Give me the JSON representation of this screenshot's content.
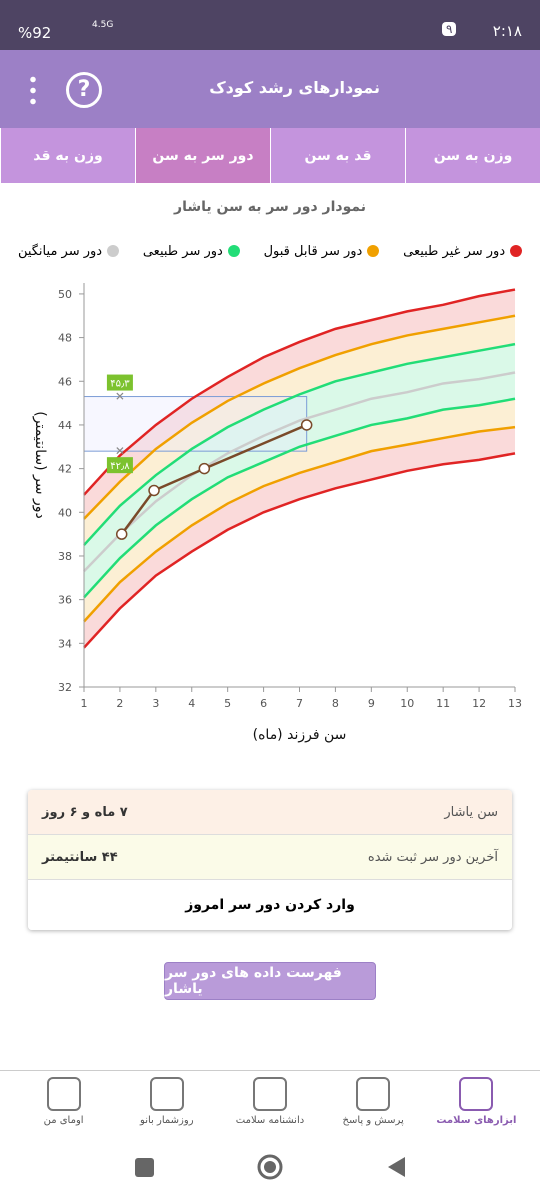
{
  "status_bar": {
    "battery": "%92",
    "network": "4.5G",
    "badge": "۹",
    "time": "۲:۱۸"
  },
  "header": {
    "title": "نمودارهای رشد کودک",
    "help": "?"
  },
  "tabs": [
    "وزن به سن",
    "قد به سن",
    "دور سر به سن",
    "وزن به قد"
  ],
  "active_tab": 2,
  "chart_data": {
    "type": "line",
    "title": "نمودار دور سر به سن یاشار",
    "x_label": "سن فرزند (ماه)",
    "y_label": "دور سر (سانتیمتر)",
    "x": [
      1,
      2,
      3,
      4,
      5,
      6,
      7,
      8,
      9,
      10,
      11,
      12,
      13
    ],
    "xlim": [
      1,
      13
    ],
    "xticks": [
      1,
      2,
      3,
      4,
      5,
      6,
      7,
      8,
      9,
      10,
      11,
      12,
      13
    ],
    "ylim": [
      32,
      50.5
    ],
    "yticks": [
      32,
      34,
      36,
      38,
      40,
      42,
      44,
      46,
      48,
      50
    ],
    "series": [
      {
        "name": "دور سر غیر طبیعی",
        "color": "#e02424",
        "values": [
          40.8,
          42.6,
          44.0,
          45.2,
          46.2,
          47.1,
          47.8,
          48.4,
          48.8,
          49.2,
          49.5,
          49.9,
          50.2
        ],
        "values_lower": [
          33.8,
          35.6,
          37.1,
          38.2,
          39.2,
          40.0,
          40.6,
          41.1,
          41.5,
          41.9,
          42.2,
          42.4,
          42.7
        ]
      },
      {
        "name": "دور سر قابل قبول",
        "color": "#f0a000",
        "values": [
          39.7,
          41.4,
          42.9,
          44.1,
          45.1,
          45.9,
          46.6,
          47.2,
          47.7,
          48.1,
          48.4,
          48.7,
          49.0
        ],
        "values_lower": [
          35.0,
          36.8,
          38.2,
          39.4,
          40.4,
          41.2,
          41.8,
          42.3,
          42.8,
          43.1,
          43.4,
          43.7,
          43.9
        ]
      },
      {
        "name": "دور سر طبیعی",
        "color": "#22dd77",
        "values": [
          38.5,
          40.3,
          41.7,
          42.9,
          43.9,
          44.7,
          45.4,
          46.0,
          46.4,
          46.8,
          47.1,
          47.4,
          47.7
        ],
        "values_lower": [
          36.1,
          37.9,
          39.4,
          40.6,
          41.6,
          42.3,
          43.0,
          43.5,
          44.0,
          44.3,
          44.7,
          44.9,
          45.2
        ]
      },
      {
        "name": "دور سر میانگین",
        "color": "#cccccc",
        "values": [
          37.3,
          39.0,
          40.5,
          41.7,
          42.7,
          43.5,
          44.2,
          44.7,
          45.2,
          45.5,
          45.9,
          46.1,
          46.4
        ]
      }
    ],
    "measurements": {
      "color": "#7a4a2a",
      "x": [
        2.05,
        2.95,
        4.35,
        7.2
      ],
      "values": [
        39,
        41,
        42,
        44
      ]
    },
    "reference_markers": [
      {
        "x": 2,
        "value": 45.3,
        "label": "۴۵٫۳"
      },
      {
        "x": 2,
        "value": 42.8,
        "label": "۴۲٫۸"
      }
    ],
    "grid": false
  },
  "info_card": {
    "rows": [
      [
        "سن یاشار",
        "۷ ماه و ۶ روز"
      ],
      [
        "آخرین دور سر ثبت شده",
        "۴۴ سانتیمتر"
      ]
    ],
    "action": "وارد کردن دور سر امروز"
  },
  "list_button": "فهرست داده های دور سر یاشار",
  "bottom_nav": [
    "ابزارهای سلامت",
    "پرسش و پاسخ",
    "دانشنامه سلامت",
    "روزشمار بانو",
    "اومای من"
  ]
}
